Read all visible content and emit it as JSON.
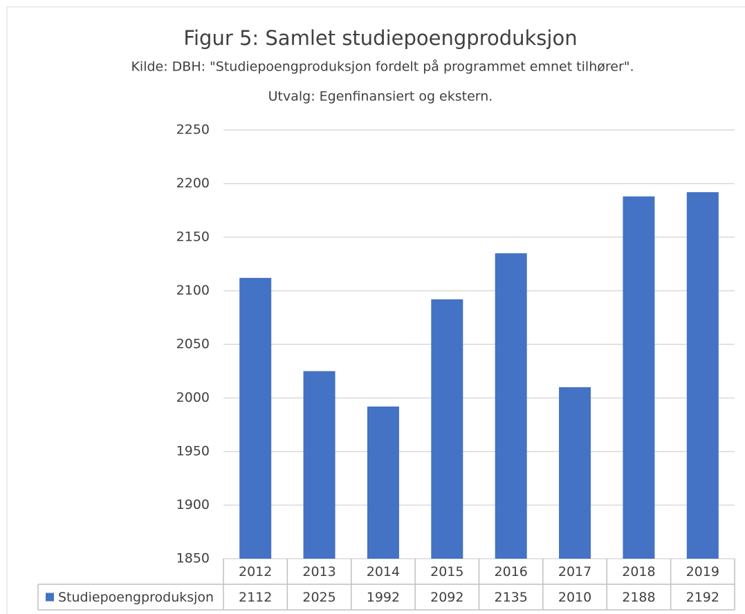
{
  "chart_data": {
    "type": "bar",
    "title": "Figur 5: Samlet studiepoengproduksjon",
    "subtitles": [
      "Kilde: DBH: \"Studiepoengproduksjon fordelt på programmet emnet tilhører\".",
      "Utvalg: Egenfinansiert og ekstern."
    ],
    "categories": [
      "2012",
      "2013",
      "2014",
      "2015",
      "2016",
      "2017",
      "2018",
      "2019"
    ],
    "series": [
      {
        "name": "Studiepoengproduksjon",
        "color": "#4472c4",
        "values": [
          2112,
          2025,
          1992,
          2092,
          2135,
          2010,
          2188,
          2192
        ]
      }
    ],
    "ylim": [
      1850,
      2250
    ],
    "yticks": [
      1850,
      1900,
      1950,
      2000,
      2050,
      2100,
      2150,
      2200,
      2250
    ],
    "grid": true
  }
}
